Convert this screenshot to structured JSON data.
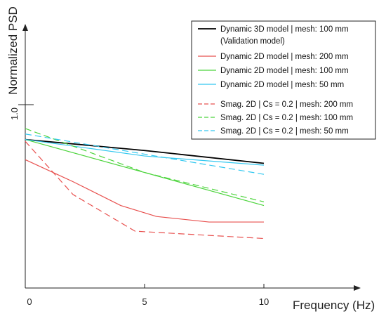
{
  "chart_data": {
    "type": "line",
    "title": "",
    "xlabel": "Frequency (Hz)",
    "ylabel": "Normalized PSD",
    "xlim": [
      0,
      10
    ],
    "ylim": [
      0,
      1.0
    ],
    "x_ticks": [
      "0",
      "5",
      "10"
    ],
    "y_ticks": [
      "1.0"
    ],
    "grid": false,
    "legend_position": "top-right",
    "series": [
      {
        "name": "Dynamic 3D model | mesh: 100 mm",
        "name_line2": "(Validation model)",
        "color": "#000000",
        "dash": "solid",
        "x": [
          0,
          5,
          10
        ],
        "y": [
          0.81,
          0.75,
          0.68
        ]
      },
      {
        "name": "Dynamic 2D model | mesh: 200 mm",
        "color": "#e8514f",
        "dash": "solid",
        "x": [
          0,
          2,
          4,
          5.5,
          7.7,
          10
        ],
        "y": [
          0.7,
          0.58,
          0.45,
          0.39,
          0.36,
          0.36
        ]
      },
      {
        "name": "Dynamic 2D model | mesh: 100 mm",
        "color": "#4cd43c",
        "dash": "solid",
        "x": [
          0,
          10
        ],
        "y": [
          0.81,
          0.45
        ]
      },
      {
        "name": "Dynamic 2D model | mesh: 50 mm",
        "color": "#33c8f0",
        "dash": "solid",
        "x": [
          0,
          5,
          10
        ],
        "y": [
          0.81,
          0.72,
          0.67
        ]
      },
      {
        "name": "Smag. 2D | Cs = 0.2 | mesh: 200 mm",
        "color": "#e8514f",
        "dash": "dashed",
        "x": [
          0,
          2,
          4.6,
          10
        ],
        "y": [
          0.8,
          0.51,
          0.31,
          0.27
        ]
      },
      {
        "name": "Smag. 2D | Cs = 0.2 | mesh: 100 mm",
        "color": "#4cd43c",
        "dash": "dashed",
        "x": [
          0,
          5,
          10
        ],
        "y": [
          0.87,
          0.63,
          0.47
        ]
      },
      {
        "name": "Smag. 2D | Cs = 0.2 | mesh: 50 mm",
        "color": "#33c8f0",
        "dash": "dashed",
        "x": [
          0,
          5,
          10
        ],
        "y": [
          0.84,
          0.73,
          0.62
        ]
      }
    ]
  }
}
